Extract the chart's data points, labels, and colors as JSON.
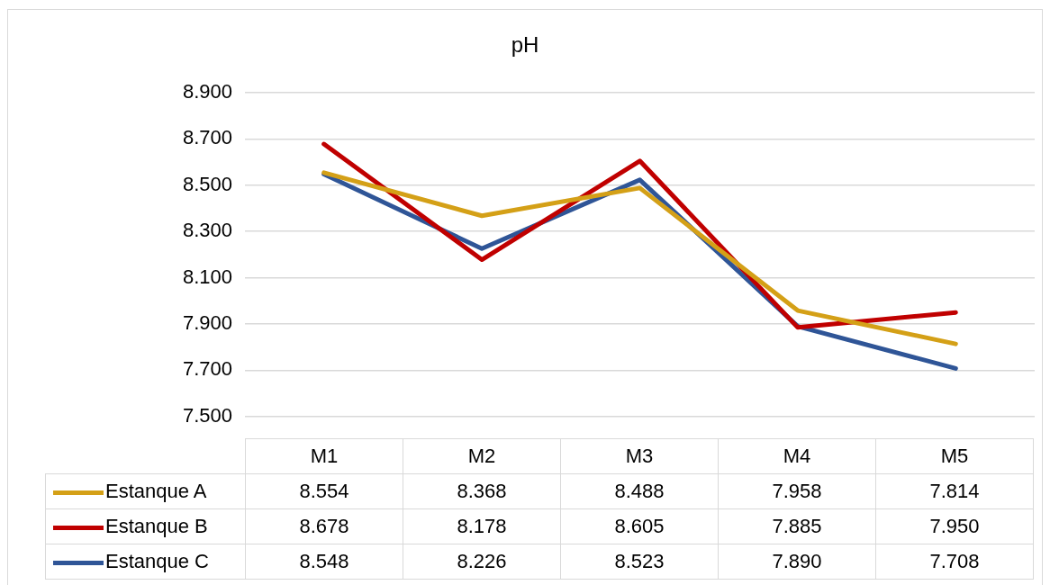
{
  "chart_data": {
    "type": "line",
    "title": "pH",
    "categories": [
      "M1",
      "M2",
      "M3",
      "M4",
      "M5"
    ],
    "series": [
      {
        "name": "Estanque A",
        "color": "#d4a017",
        "values": [
          8.554,
          8.368,
          8.488,
          7.958,
          7.814
        ],
        "value_labels": [
          "8.554",
          "8.368",
          "8.488",
          "7.958",
          "7.814"
        ]
      },
      {
        "name": "Estanque B",
        "color": "#c00000",
        "values": [
          8.678,
          8.178,
          8.605,
          7.885,
          7.95
        ],
        "value_labels": [
          "8.678",
          "8.178",
          "8.605",
          "7.885",
          "7.950"
        ]
      },
      {
        "name": "Estanque C",
        "color": "#2f5597",
        "values": [
          8.548,
          8.226,
          8.523,
          7.89,
          7.708
        ],
        "value_labels": [
          "8.548",
          "8.226",
          "8.523",
          "7.890",
          "7.708"
        ]
      }
    ],
    "ylim": [
      7.5,
      8.9
    ],
    "yticks": [
      {
        "value": 7.5,
        "label": "7.500"
      },
      {
        "value": 7.7,
        "label": "7.700"
      },
      {
        "value": 7.9,
        "label": "7.900"
      },
      {
        "value": 8.1,
        "label": "8.100"
      },
      {
        "value": 8.3,
        "label": "8.300"
      },
      {
        "value": 8.5,
        "label": "8.500"
      },
      {
        "value": 8.7,
        "label": "8.700"
      },
      {
        "value": 8.9,
        "label": "8.900"
      }
    ],
    "grid": "y",
    "legend": "bottom",
    "marker": "none",
    "line_style": "solid"
  }
}
